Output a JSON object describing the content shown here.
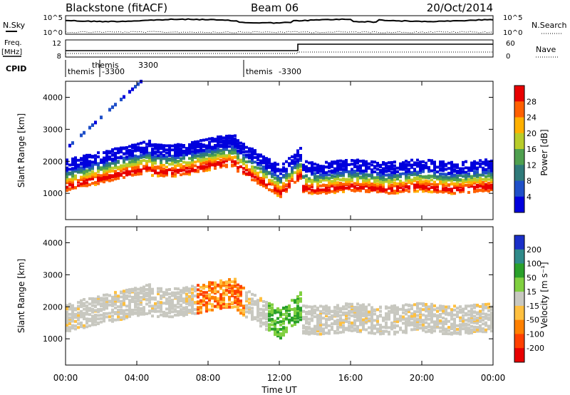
{
  "header": {
    "station": "Blackstone (fitACF)",
    "beam": "Beam 06",
    "date": "20/Oct/2014"
  },
  "ancillary": {
    "nsky_label": "N.Sky",
    "nsky_ticks": [
      "10^5",
      "10^0"
    ],
    "nsearch_label": "N.Search",
    "nsearch_ticks": [
      "10^5",
      "10^0"
    ],
    "freq_label_top": "Freq.",
    "freq_label_unit": "[MHz]",
    "freq_ticks": [
      "12",
      "8"
    ],
    "nave_label": "Nave",
    "nave_ticks": [
      "60",
      "0"
    ],
    "cpid_label": "CPID",
    "cpid_entries": [
      {
        "name": "themis",
        "id": "-3300"
      },
      {
        "name": "themis",
        "id": "3300"
      },
      {
        "name": "themis",
        "id": "-3300"
      }
    ]
  },
  "chart_data": [
    {
      "type": "heatmap",
      "name": "power",
      "ylabel": "Slant Range [km]",
      "ylim": [
        180,
        4500
      ],
      "yticks": [
        "1000",
        "2000",
        "3000",
        "4000"
      ],
      "colorbar_label": "Power [dB]",
      "colorbar_ticks": [
        "4",
        "8",
        "12",
        "16",
        "20",
        "24",
        "28"
      ],
      "colorbar_colors": [
        "#0000dd",
        "#1f4fc8",
        "#2f7a7a",
        "#4fa04f",
        "#b8cc2a",
        "#ffb000",
        "#ff6000",
        "#e80000"
      ]
    },
    {
      "type": "heatmap",
      "name": "velocity",
      "ylabel": "Slant Range [km]",
      "ylim": [
        180,
        4500
      ],
      "yticks": [
        "1000",
        "2000",
        "3000",
        "4000"
      ],
      "colorbar_label": "Velocity [m s⁻¹]",
      "colorbar_ticks": [
        "200",
        "100",
        "50",
        "15",
        "-15",
        "-50",
        "-100",
        "-200"
      ],
      "colorbar_colors": [
        "#1a2fc8",
        "#2f8a8a",
        "#2aa02a",
        "#80d040",
        "#c8c8c0",
        "#ffc040",
        "#ff8000",
        "#ff4000",
        "#e80000"
      ]
    }
  ],
  "xaxis": {
    "label": "Time UT",
    "ticks": [
      "00:00",
      "04:00",
      "08:00",
      "12:00",
      "16:00",
      "20:00",
      "00:00"
    ]
  }
}
